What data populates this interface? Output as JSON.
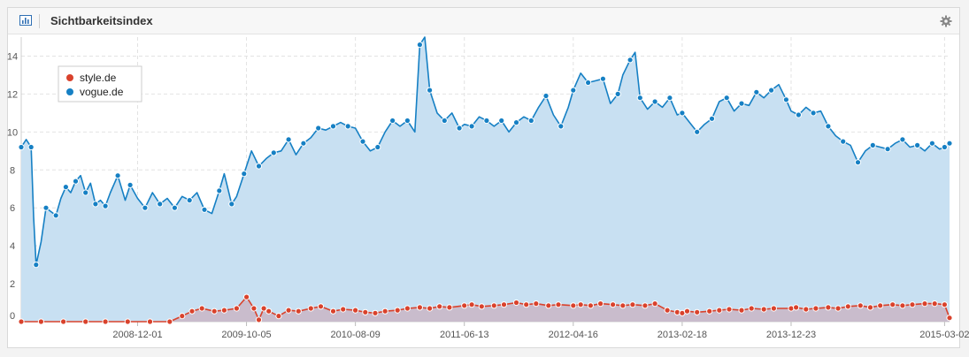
{
  "header": {
    "title": "Sichtbarkeitsindex",
    "chart_icon": "bar-chart-icon",
    "settings_icon": "gear-icon"
  },
  "chart_data": {
    "type": "area",
    "title": "Sichtbarkeitsindex",
    "xlabel": "",
    "ylabel": "",
    "ylim": [
      0,
      15
    ],
    "yticks": [
      "0",
      "2",
      "4",
      "6",
      "8",
      "10",
      "12",
      "14"
    ],
    "xticks": [
      "2008-12-01",
      "2009-10-05",
      "2010-08-09",
      "2011-06-13",
      "2012-04-16",
      "2013-02-18",
      "2013-12-23",
      "2015-03-02"
    ],
    "grid": true,
    "legend_position": "top-left",
    "x_range": [
      "2008-01-07",
      "2015-03-16"
    ],
    "series": [
      {
        "name": "style.de",
        "color": "#d9422c",
        "fill": "#c9b8c8",
        "points": [
          [
            "2008-01-07",
            0.0
          ],
          [
            "2008-03-03",
            0.0
          ],
          [
            "2008-05-05",
            0.0
          ],
          [
            "2008-07-07",
            0.0
          ],
          [
            "2008-09-01",
            0.0
          ],
          [
            "2008-11-03",
            0.0
          ],
          [
            "2009-01-05",
            0.0
          ],
          [
            "2009-03-02",
            0.0
          ],
          [
            "2009-04-06",
            0.3
          ],
          [
            "2009-05-04",
            0.55
          ],
          [
            "2009-06-01",
            0.7
          ],
          [
            "2009-07-06",
            0.55
          ],
          [
            "2009-08-03",
            0.6
          ],
          [
            "2009-09-07",
            0.7
          ],
          [
            "2009-10-05",
            1.3
          ],
          [
            "2009-10-26",
            0.7
          ],
          [
            "2009-11-09",
            0.1
          ],
          [
            "2009-11-23",
            0.7
          ],
          [
            "2009-12-07",
            0.55
          ],
          [
            "2010-01-04",
            0.3
          ],
          [
            "2010-02-01",
            0.6
          ],
          [
            "2010-03-01",
            0.55
          ],
          [
            "2010-04-05",
            0.7
          ],
          [
            "2010-05-03",
            0.8
          ],
          [
            "2010-06-07",
            0.55
          ],
          [
            "2010-07-05",
            0.65
          ],
          [
            "2010-08-09",
            0.6
          ],
          [
            "2010-09-06",
            0.5
          ],
          [
            "2010-10-04",
            0.45
          ],
          [
            "2010-11-01",
            0.55
          ],
          [
            "2010-12-06",
            0.6
          ],
          [
            "2011-01-03",
            0.7
          ],
          [
            "2011-02-07",
            0.75
          ],
          [
            "2011-03-07",
            0.7
          ],
          [
            "2011-04-04",
            0.8
          ],
          [
            "2011-05-02",
            0.75
          ],
          [
            "2011-06-13",
            0.85
          ],
          [
            "2011-07-04",
            0.9
          ],
          [
            "2011-08-01",
            0.8
          ],
          [
            "2011-09-05",
            0.85
          ],
          [
            "2011-10-03",
            0.9
          ],
          [
            "2011-11-07",
            1.0
          ],
          [
            "2011-12-05",
            0.9
          ],
          [
            "2012-01-02",
            0.95
          ],
          [
            "2012-02-06",
            0.85
          ],
          [
            "2012-03-05",
            0.9
          ],
          [
            "2012-04-16",
            0.85
          ],
          [
            "2012-05-07",
            0.9
          ],
          [
            "2012-06-04",
            0.85
          ],
          [
            "2012-07-02",
            0.95
          ],
          [
            "2012-08-06",
            0.9
          ],
          [
            "2012-09-03",
            0.85
          ],
          [
            "2012-10-01",
            0.9
          ],
          [
            "2012-11-05",
            0.85
          ],
          [
            "2012-12-03",
            0.95
          ],
          [
            "2013-01-07",
            0.6
          ],
          [
            "2013-02-04",
            0.5
          ],
          [
            "2013-02-18",
            0.45
          ],
          [
            "2013-03-04",
            0.55
          ],
          [
            "2013-04-01",
            0.5
          ],
          [
            "2013-05-06",
            0.55
          ],
          [
            "2013-06-03",
            0.6
          ],
          [
            "2013-07-01",
            0.65
          ],
          [
            "2013-08-05",
            0.6
          ],
          [
            "2013-09-02",
            0.7
          ],
          [
            "2013-10-07",
            0.65
          ],
          [
            "2013-11-04",
            0.7
          ],
          [
            "2013-12-23",
            0.7
          ],
          [
            "2014-01-06",
            0.75
          ],
          [
            "2014-02-03",
            0.65
          ],
          [
            "2014-03-03",
            0.7
          ],
          [
            "2014-04-07",
            0.75
          ],
          [
            "2014-05-05",
            0.7
          ],
          [
            "2014-06-02",
            0.8
          ],
          [
            "2014-07-07",
            0.85
          ],
          [
            "2014-08-04",
            0.75
          ],
          [
            "2014-09-01",
            0.85
          ],
          [
            "2014-10-06",
            0.9
          ],
          [
            "2014-11-03",
            0.85
          ],
          [
            "2014-12-01",
            0.9
          ],
          [
            "2015-01-05",
            0.95
          ],
          [
            "2015-02-02",
            0.95
          ],
          [
            "2015-03-02",
            0.9
          ],
          [
            "2015-03-16",
            0.2
          ]
        ]
      },
      {
        "name": "vogue.de",
        "color": "#1680c4",
        "fill": "#c8e0f2",
        "points": [
          [
            "2008-01-07",
            9.2
          ],
          [
            "2008-01-21",
            9.6
          ],
          [
            "2008-02-04",
            9.2
          ],
          [
            "2008-02-11",
            5.5
          ],
          [
            "2008-02-18",
            3.0
          ],
          [
            "2008-03-03",
            4.2
          ],
          [
            "2008-03-17",
            6.0
          ],
          [
            "2008-03-31",
            5.8
          ],
          [
            "2008-04-14",
            5.6
          ],
          [
            "2008-04-28",
            6.5
          ],
          [
            "2008-05-12",
            7.1
          ],
          [
            "2008-05-26",
            6.8
          ],
          [
            "2008-06-09",
            7.4
          ],
          [
            "2008-06-23",
            7.7
          ],
          [
            "2008-07-07",
            6.8
          ],
          [
            "2008-07-21",
            7.3
          ],
          [
            "2008-08-04",
            6.2
          ],
          [
            "2008-08-18",
            6.4
          ],
          [
            "2008-09-01",
            6.1
          ],
          [
            "2008-09-15",
            6.8
          ],
          [
            "2008-10-06",
            7.7
          ],
          [
            "2008-10-27",
            6.4
          ],
          [
            "2008-11-10",
            7.2
          ],
          [
            "2008-12-01",
            6.5
          ],
          [
            "2008-12-22",
            6.0
          ],
          [
            "2009-01-12",
            6.8
          ],
          [
            "2009-02-02",
            6.2
          ],
          [
            "2009-02-23",
            6.5
          ],
          [
            "2009-03-16",
            6.0
          ],
          [
            "2009-04-06",
            6.6
          ],
          [
            "2009-04-27",
            6.4
          ],
          [
            "2009-05-18",
            6.8
          ],
          [
            "2009-06-08",
            5.9
          ],
          [
            "2009-06-29",
            5.7
          ],
          [
            "2009-07-20",
            6.9
          ],
          [
            "2009-08-03",
            7.8
          ],
          [
            "2009-08-24",
            6.2
          ],
          [
            "2009-09-07",
            6.6
          ],
          [
            "2009-09-28",
            7.8
          ],
          [
            "2009-10-19",
            9.0
          ],
          [
            "2009-11-09",
            8.2
          ],
          [
            "2009-11-30",
            8.6
          ],
          [
            "2009-12-21",
            8.9
          ],
          [
            "2010-01-11",
            9.0
          ],
          [
            "2010-02-01",
            9.6
          ],
          [
            "2010-02-22",
            8.8
          ],
          [
            "2010-03-15",
            9.4
          ],
          [
            "2010-04-05",
            9.7
          ],
          [
            "2010-04-26",
            10.2
          ],
          [
            "2010-05-17",
            10.1
          ],
          [
            "2010-06-07",
            10.3
          ],
          [
            "2010-06-28",
            10.5
          ],
          [
            "2010-07-19",
            10.3
          ],
          [
            "2010-08-09",
            10.2
          ],
          [
            "2010-08-30",
            9.5
          ],
          [
            "2010-09-20",
            9.0
          ],
          [
            "2010-10-11",
            9.2
          ],
          [
            "2010-11-01",
            10.0
          ],
          [
            "2010-11-22",
            10.6
          ],
          [
            "2010-12-13",
            10.3
          ],
          [
            "2011-01-03",
            10.6
          ],
          [
            "2011-01-24",
            10.0
          ],
          [
            "2011-02-07",
            14.6
          ],
          [
            "2011-02-21",
            15.0
          ],
          [
            "2011-03-07",
            12.2
          ],
          [
            "2011-03-28",
            11.0
          ],
          [
            "2011-04-18",
            10.6
          ],
          [
            "2011-05-09",
            11.0
          ],
          [
            "2011-05-30",
            10.2
          ],
          [
            "2011-06-13",
            10.4
          ],
          [
            "2011-07-04",
            10.3
          ],
          [
            "2011-07-25",
            10.8
          ],
          [
            "2011-08-15",
            10.6
          ],
          [
            "2011-09-05",
            10.3
          ],
          [
            "2011-09-26",
            10.6
          ],
          [
            "2011-10-17",
            10.0
          ],
          [
            "2011-11-07",
            10.5
          ],
          [
            "2011-11-28",
            10.8
          ],
          [
            "2011-12-19",
            10.6
          ],
          [
            "2012-01-09",
            11.3
          ],
          [
            "2012-01-30",
            11.9
          ],
          [
            "2012-02-20",
            10.9
          ],
          [
            "2012-03-12",
            10.3
          ],
          [
            "2012-04-02",
            11.3
          ],
          [
            "2012-04-16",
            12.2
          ],
          [
            "2012-05-07",
            13.1
          ],
          [
            "2012-05-28",
            12.6
          ],
          [
            "2012-06-18",
            12.7
          ],
          [
            "2012-07-09",
            12.8
          ],
          [
            "2012-07-30",
            11.5
          ],
          [
            "2012-08-20",
            12.0
          ],
          [
            "2012-09-03",
            13.0
          ],
          [
            "2012-09-24",
            13.8
          ],
          [
            "2012-10-08",
            14.2
          ],
          [
            "2012-10-22",
            11.8
          ],
          [
            "2012-11-12",
            11.2
          ],
          [
            "2012-12-03",
            11.6
          ],
          [
            "2012-12-24",
            11.3
          ],
          [
            "2013-01-14",
            11.8
          ],
          [
            "2013-02-04",
            10.9
          ],
          [
            "2013-02-18",
            11.0
          ],
          [
            "2013-03-11",
            10.5
          ],
          [
            "2013-04-01",
            10.0
          ],
          [
            "2013-04-22",
            10.4
          ],
          [
            "2013-05-13",
            10.7
          ],
          [
            "2013-06-03",
            11.6
          ],
          [
            "2013-06-24",
            11.8
          ],
          [
            "2013-07-15",
            11.1
          ],
          [
            "2013-08-05",
            11.5
          ],
          [
            "2013-08-26",
            11.4
          ],
          [
            "2013-09-16",
            12.1
          ],
          [
            "2013-10-07",
            11.8
          ],
          [
            "2013-10-28",
            12.2
          ],
          [
            "2013-11-18",
            12.5
          ],
          [
            "2013-12-09",
            11.7
          ],
          [
            "2013-12-23",
            11.1
          ],
          [
            "2014-01-13",
            10.9
          ],
          [
            "2014-02-03",
            11.3
          ],
          [
            "2014-02-24",
            11.0
          ],
          [
            "2014-03-17",
            11.1
          ],
          [
            "2014-04-07",
            10.3
          ],
          [
            "2014-04-28",
            9.8
          ],
          [
            "2014-05-19",
            9.5
          ],
          [
            "2014-06-09",
            9.3
          ],
          [
            "2014-06-30",
            8.4
          ],
          [
            "2014-07-21",
            9.0
          ],
          [
            "2014-08-11",
            9.3
          ],
          [
            "2014-09-01",
            9.2
          ],
          [
            "2014-09-22",
            9.1
          ],
          [
            "2014-10-13",
            9.4
          ],
          [
            "2014-11-03",
            9.6
          ],
          [
            "2014-11-24",
            9.2
          ],
          [
            "2014-12-15",
            9.3
          ],
          [
            "2015-01-05",
            9.0
          ],
          [
            "2015-01-26",
            9.4
          ],
          [
            "2015-02-16",
            9.1
          ],
          [
            "2015-03-02",
            9.2
          ],
          [
            "2015-03-16",
            9.4
          ]
        ]
      }
    ]
  }
}
